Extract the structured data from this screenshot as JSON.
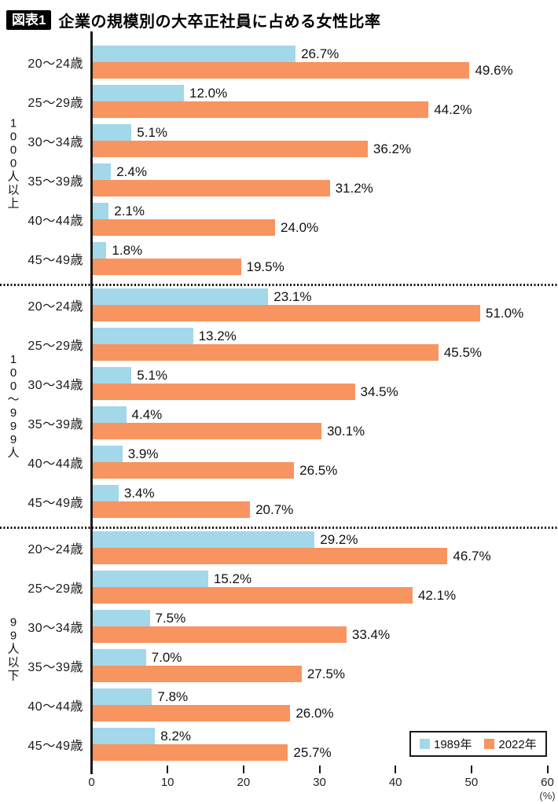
{
  "title": {
    "badge": "図表1",
    "text": "企業の規模別の大卒正社員に占める女性比率"
  },
  "legend": {
    "items": [
      {
        "label": "1989年",
        "color": "#A2D8EA"
      },
      {
        "label": "2022年",
        "color": "#F79460"
      }
    ]
  },
  "axis": {
    "ticks": [
      0,
      10,
      20,
      30,
      40,
      50,
      60
    ],
    "unit": "(%)",
    "max": 60
  },
  "chart_data": {
    "type": "bar",
    "orientation": "horizontal",
    "title": "企業の規模別の大卒正社員に占める女性比率",
    "series": [
      "1989年",
      "2022年"
    ],
    "series_colors": [
      "#A2D8EA",
      "#F79460"
    ],
    "xlim": [
      0,
      60
    ],
    "x_ticks": [
      0,
      10,
      20,
      30,
      40,
      50,
      60
    ],
    "x_unit": "(%)",
    "value_suffix": "%",
    "legend_position": "bottom-right",
    "grid": false,
    "groups": [
      {
        "label": "1000人以上",
        "rows": [
          {
            "age": "20〜24歳",
            "values": [
              26.7,
              49.6
            ]
          },
          {
            "age": "25〜29歳",
            "values": [
              12.0,
              44.2
            ]
          },
          {
            "age": "30〜34歳",
            "values": [
              5.1,
              36.2
            ]
          },
          {
            "age": "35〜39歳",
            "values": [
              2.4,
              31.2
            ]
          },
          {
            "age": "40〜44歳",
            "values": [
              2.1,
              24.0
            ]
          },
          {
            "age": "45〜49歳",
            "values": [
              1.8,
              19.5
            ]
          }
        ]
      },
      {
        "label": "100〜999人",
        "rows": [
          {
            "age": "20〜24歳",
            "values": [
              23.1,
              51.0
            ]
          },
          {
            "age": "25〜29歳",
            "values": [
              13.2,
              45.5
            ]
          },
          {
            "age": "30〜34歳",
            "values": [
              5.1,
              34.5
            ]
          },
          {
            "age": "35〜39歳",
            "values": [
              4.4,
              30.1
            ]
          },
          {
            "age": "40〜44歳",
            "values": [
              3.9,
              26.5
            ]
          },
          {
            "age": "45〜49歳",
            "values": [
              3.4,
              20.7
            ]
          }
        ]
      },
      {
        "label": "99人以下",
        "rows": [
          {
            "age": "20〜24歳",
            "values": [
              29.2,
              46.7
            ]
          },
          {
            "age": "25〜29歳",
            "values": [
              15.2,
              42.1
            ]
          },
          {
            "age": "30〜34歳",
            "values": [
              7.5,
              33.4
            ]
          },
          {
            "age": "35〜39歳",
            "values": [
              7.0,
              27.5
            ]
          },
          {
            "age": "40〜44歳",
            "values": [
              7.8,
              26.0
            ]
          },
          {
            "age": "45〜49歳",
            "values": [
              8.2,
              25.7
            ]
          }
        ]
      }
    ]
  }
}
